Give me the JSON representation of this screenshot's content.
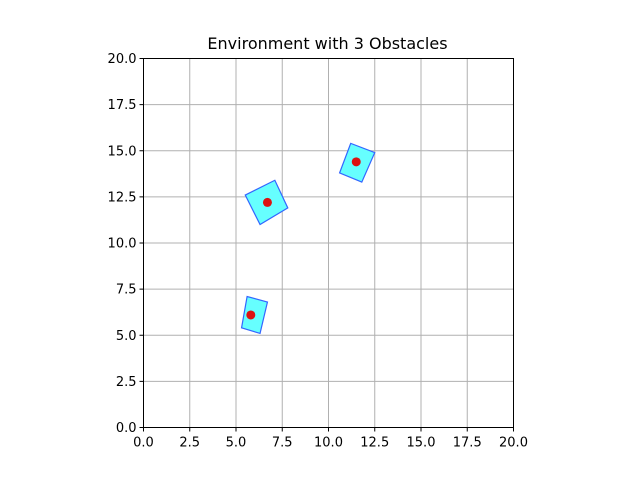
{
  "chart_data": {
    "type": "scatter",
    "title": "Environment with 3 Obstacles",
    "xlabel": "",
    "ylabel": "",
    "xlim": [
      0,
      20
    ],
    "ylim": [
      0,
      20
    ],
    "xticks": [
      0,
      2.5,
      5,
      7.5,
      10,
      12.5,
      15,
      17.5,
      20
    ],
    "yticks": [
      0,
      2.5,
      5,
      7.5,
      10,
      12.5,
      15,
      17.5,
      20
    ],
    "xtick_labels": [
      "0.0",
      "2.5",
      "5.0",
      "7.5",
      "10.0",
      "12.5",
      "15.0",
      "17.5",
      "20.0"
    ],
    "ytick_labels": [
      "0.0",
      "2.5",
      "5.0",
      "7.5",
      "10.0",
      "12.5",
      "15.0",
      "17.5",
      "20.0"
    ],
    "grid": true,
    "obstacle_fill_color": "#66ffff",
    "obstacle_edge_color": "#3366ff",
    "center_color": "#dd1111",
    "obstacles": [
      {
        "center": [
          5.8,
          6.1
        ],
        "corners": [
          [
            5.3,
            5.4
          ],
          [
            5.6,
            7.1
          ],
          [
            6.7,
            6.8
          ],
          [
            6.3,
            5.1
          ]
        ]
      },
      {
        "center": [
          6.7,
          12.2
        ],
        "corners": [
          [
            5.5,
            12.6
          ],
          [
            7.1,
            13.4
          ],
          [
            7.8,
            11.9
          ],
          [
            6.3,
            11.0
          ]
        ]
      },
      {
        "center": [
          11.5,
          14.4
        ],
        "corners": [
          [
            10.6,
            13.8
          ],
          [
            11.2,
            15.4
          ],
          [
            12.5,
            14.9
          ],
          [
            11.8,
            13.3
          ]
        ]
      }
    ]
  }
}
